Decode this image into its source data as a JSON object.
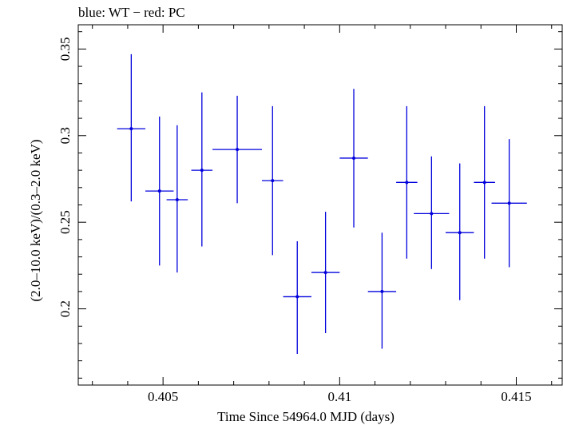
{
  "chart_data": {
    "type": "scatter",
    "title": "blue: WT − red: PC",
    "xlabel": "Time Since 54964.0 MJD (days)",
    "ylabel": "(2.0–10.0 keV)/(0.3–2.0 keV)",
    "xlim": [
      0.4026,
      0.4163
    ],
    "ylim": [
      0.156,
      0.364
    ],
    "xticks": [
      0.405,
      0.41,
      0.415
    ],
    "xtick_labels": [
      "0.405",
      "0.41",
      "0.415"
    ],
    "yticks": [
      0.2,
      0.25,
      0.3,
      0.35
    ],
    "ytick_labels": [
      "0.2",
      "0.25",
      "0.3",
      "0.35"
    ],
    "grid": false,
    "series": [
      {
        "name": "WT",
        "color": "#0000dd",
        "points": [
          {
            "x": 0.4041,
            "xerr": 0.0004,
            "y": 0.304,
            "ylo": 0.262,
            "yhi": 0.347
          },
          {
            "x": 0.4049,
            "xerr": 0.0004,
            "y": 0.268,
            "ylo": 0.225,
            "yhi": 0.311
          },
          {
            "x": 0.4054,
            "xerr": 0.0003,
            "y": 0.263,
            "ylo": 0.221,
            "yhi": 0.306
          },
          {
            "x": 0.4061,
            "xerr": 0.0003,
            "y": 0.28,
            "ylo": 0.236,
            "yhi": 0.325
          },
          {
            "x": 0.4071,
            "xerr": 0.0007,
            "y": 0.292,
            "ylo": 0.261,
            "yhi": 0.323
          },
          {
            "x": 0.4081,
            "xerr": 0.0003,
            "y": 0.274,
            "ylo": 0.231,
            "yhi": 0.317
          },
          {
            "x": 0.4088,
            "xerr": 0.0004,
            "y": 0.207,
            "ylo": 0.174,
            "yhi": 0.239
          },
          {
            "x": 0.4096,
            "xerr": 0.0004,
            "y": 0.221,
            "ylo": 0.186,
            "yhi": 0.256
          },
          {
            "x": 0.4104,
            "xerr": 0.0004,
            "y": 0.287,
            "ylo": 0.247,
            "yhi": 0.327
          },
          {
            "x": 0.4112,
            "xerr": 0.0004,
            "y": 0.21,
            "ylo": 0.177,
            "yhi": 0.244
          },
          {
            "x": 0.4119,
            "xerr": 0.0003,
            "y": 0.273,
            "ylo": 0.229,
            "yhi": 0.317
          },
          {
            "x": 0.4126,
            "xerr": 0.0005,
            "y": 0.255,
            "ylo": 0.223,
            "yhi": 0.288
          },
          {
            "x": 0.4134,
            "xerr": 0.0004,
            "y": 0.244,
            "ylo": 0.205,
            "yhi": 0.284
          },
          {
            "x": 0.4141,
            "xerr": 0.0003,
            "y": 0.273,
            "ylo": 0.229,
            "yhi": 0.317
          },
          {
            "x": 0.4148,
            "xerr": 0.0005,
            "y": 0.261,
            "ylo": 0.224,
            "yhi": 0.298
          }
        ]
      }
    ]
  }
}
